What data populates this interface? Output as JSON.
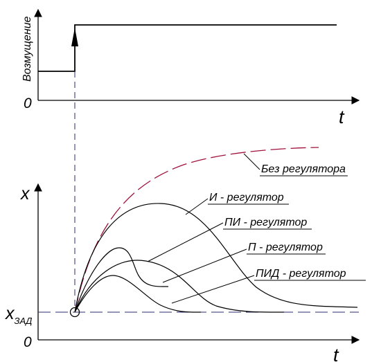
{
  "top_plot": {
    "y_label": "Возмущение",
    "origin_label": "0",
    "x_label": "t"
  },
  "bottom_plot": {
    "y_label": "x",
    "origin_label": "0",
    "x_label": "t",
    "setpoint_label": "x",
    "setpoint_subscript": "ЗАД"
  },
  "curves": [
    {
      "label": "Без регулятора",
      "color": "#a0103a",
      "style": "dashed"
    },
    {
      "label": "И - регулятор",
      "color": "#000000",
      "style": "solid"
    },
    {
      "label": "ПИ - регулятор",
      "color": "#000000",
      "style": "solid"
    },
    {
      "label": "П - регулятор",
      "color": "#000000",
      "style": "solid"
    },
    {
      "label": "ПИД - регулятор",
      "color": "#000000",
      "style": "solid"
    }
  ],
  "colors": {
    "axes": "#000000",
    "guide_dashes": "#2a2a6e",
    "no_regulator": "#a0103a"
  }
}
